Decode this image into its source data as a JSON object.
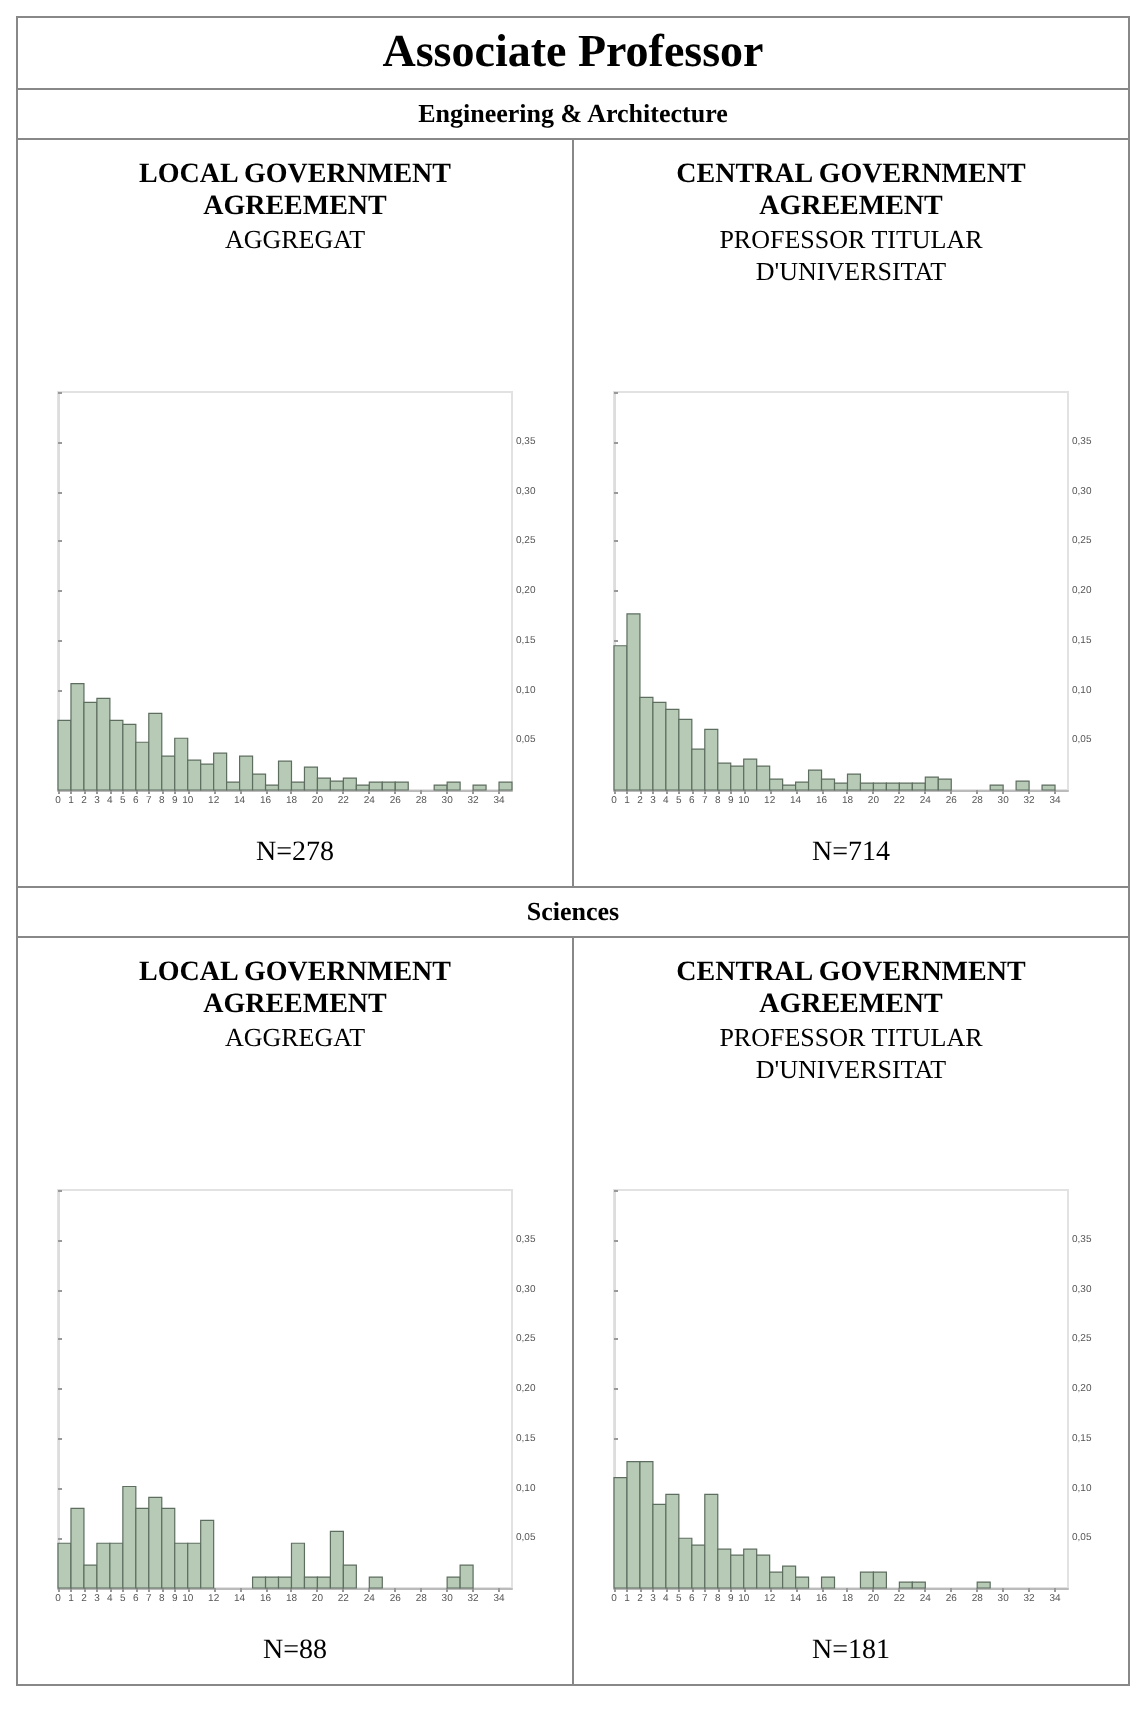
{
  "chart_data": [
    {
      "type": "histogram",
      "title": "LOCAL GOVERNMENT AGREEMENT",
      "subtitle": "AGGREGAT",
      "annotations": [
        "Associate Professor",
        "Engineering & Architecture",
        "N=278"
      ],
      "color": "#b7cab6",
      "bins": [
        0,
        1,
        2,
        3,
        4,
        5,
        6,
        7,
        8,
        9,
        10,
        11,
        12,
        13,
        14,
        15,
        16,
        17,
        18,
        19,
        20,
        21,
        22,
        23,
        24,
        25,
        26,
        27,
        28,
        29,
        30,
        31,
        32,
        33,
        34,
        35
      ],
      "values": [
        0.07,
        0.107,
        0.088,
        0.092,
        0.07,
        0.066,
        0.048,
        0.077,
        0.034,
        0.052,
        0.03,
        0.026,
        0.037,
        0.008,
        0.034,
        0.016,
        0.005,
        0.029,
        0.008,
        0.023,
        0.012,
        0.009,
        0.012,
        0.005,
        0.008,
        0.008,
        0.008,
        0,
        0,
        0.005,
        0.008,
        0,
        0.005,
        0,
        0.008
      ],
      "xlim": [
        0,
        35
      ],
      "xticks": [
        0,
        1,
        2,
        3,
        4,
        5,
        6,
        7,
        8,
        9,
        10,
        12,
        14,
        16,
        18,
        20,
        22,
        24,
        26,
        28,
        30,
        32,
        34
      ],
      "ylim": [
        0,
        0.4
      ],
      "yticks": [
        {
          "value": 0.05,
          "label": "0,05"
        },
        {
          "value": 0.1,
          "label": "0,10"
        },
        {
          "value": 0.15,
          "label": "0,15"
        },
        {
          "value": 0.2,
          "label": "0,20"
        },
        {
          "value": 0.25,
          "label": "0,25"
        },
        {
          "value": 0.3,
          "label": "0,30"
        },
        {
          "value": 0.35,
          "label": "0,35"
        },
        {
          "value": 0.4,
          "label": null
        }
      ]
    },
    {
      "type": "histogram",
      "title": "CENTRAL GOVERNMENT AGREEMENT",
      "subtitle": "PROFESSOR TITULAR D'UNIVERSITAT",
      "annotations": [
        "N=714"
      ],
      "color": "#b7cab6",
      "bins": [
        0,
        1,
        2,
        3,
        4,
        5,
        6,
        7,
        8,
        9,
        10,
        11,
        12,
        13,
        14,
        15,
        16,
        17,
        18,
        19,
        20,
        21,
        22,
        23,
        24,
        25,
        26,
        27,
        28,
        29,
        30,
        31,
        32,
        33,
        34,
        35
      ],
      "values": [
        0.145,
        0.177,
        0.093,
        0.088,
        0.081,
        0.071,
        0.041,
        0.061,
        0.027,
        0.024,
        0.031,
        0.024,
        0.011,
        0.005,
        0.008,
        0.02,
        0.011,
        0.007,
        0.016,
        0.007,
        0.007,
        0.007,
        0.007,
        0.007,
        0.013,
        0.011,
        0,
        0,
        0,
        0.005,
        0,
        0.009,
        0,
        0.005,
        0
      ],
      "xlim": [
        0,
        35
      ],
      "xticks": [
        0,
        1,
        2,
        3,
        4,
        5,
        6,
        7,
        8,
        9,
        10,
        12,
        14,
        16,
        18,
        20,
        22,
        24,
        26,
        28,
        30,
        32,
        34
      ],
      "ylim": [
        0,
        0.4
      ],
      "yticks": [
        {
          "value": 0.05,
          "label": "0,05"
        },
        {
          "value": 0.1,
          "label": "0,10"
        },
        {
          "value": 0.15,
          "label": "0,15"
        },
        {
          "value": 0.2,
          "label": "0,20"
        },
        {
          "value": 0.25,
          "label": "0,25"
        },
        {
          "value": 0.3,
          "label": "0,30"
        },
        {
          "value": 0.35,
          "label": "0,35"
        },
        {
          "value": 0.4,
          "label": null
        }
      ]
    },
    {
      "type": "histogram",
      "title": "LOCAL GOVERNMENT AGREEMENT",
      "subtitle": "AGGREGAT",
      "annotations": [
        "Sciences",
        "N=88"
      ],
      "color": "#b7cab6",
      "bins": [
        0,
        1,
        2,
        3,
        4,
        5,
        6,
        7,
        8,
        9,
        10,
        11,
        12,
        13,
        14,
        15,
        16,
        17,
        18,
        19,
        20,
        21,
        22,
        23,
        24,
        25,
        26,
        27,
        28,
        29,
        30,
        31,
        32,
        33,
        34,
        35
      ],
      "values": [
        0.045,
        0.08,
        0.023,
        0.045,
        0.045,
        0.102,
        0.08,
        0.091,
        0.08,
        0.045,
        0.045,
        0.068,
        0,
        0,
        0,
        0.011,
        0.011,
        0.011,
        0.045,
        0.011,
        0.011,
        0.057,
        0.023,
        0,
        0.011,
        0,
        0,
        0,
        0,
        0,
        0.011,
        0.023,
        0,
        0,
        0
      ],
      "xlim": [
        0,
        35
      ],
      "xticks": [
        0,
        1,
        2,
        3,
        4,
        5,
        6,
        7,
        8,
        9,
        10,
        12,
        14,
        16,
        18,
        20,
        22,
        24,
        26,
        28,
        30,
        32,
        34
      ],
      "ylim": [
        0,
        0.4
      ],
      "yticks": [
        {
          "value": 0.05,
          "label": "0,05"
        },
        {
          "value": 0.1,
          "label": "0,10"
        },
        {
          "value": 0.15,
          "label": "0,15"
        },
        {
          "value": 0.2,
          "label": "0,20"
        },
        {
          "value": 0.25,
          "label": "0,25"
        },
        {
          "value": 0.3,
          "label": "0,30"
        },
        {
          "value": 0.35,
          "label": "0,35"
        },
        {
          "value": 0.4,
          "label": null
        }
      ]
    },
    {
      "type": "histogram",
      "title": "CENTRAL GOVERNMENT AGREEMENT",
      "subtitle": "PROFESSOR TITULAR D'UNIVERSITAT",
      "annotations": [
        "N=181"
      ],
      "color": "#b7cab6",
      "bins": [
        0,
        1,
        2,
        3,
        4,
        5,
        6,
        7,
        8,
        9,
        10,
        11,
        12,
        13,
        14,
        15,
        16,
        17,
        18,
        19,
        20,
        21,
        22,
        23,
        24,
        25,
        26,
        27,
        28,
        29,
        30,
        31,
        32,
        33,
        34,
        35
      ],
      "values": [
        0.111,
        0.127,
        0.127,
        0.084,
        0.094,
        0.05,
        0.043,
        0.094,
        0.039,
        0.033,
        0.039,
        0.033,
        0.016,
        0.022,
        0.011,
        0,
        0.011,
        0,
        0,
        0.016,
        0.016,
        0,
        0.006,
        0.006,
        0,
        0,
        0,
        0,
        0.006,
        0,
        0,
        0,
        0,
        0,
        0
      ],
      "xlim": [
        0,
        35
      ],
      "xticks": [
        0,
        1,
        2,
        3,
        4,
        5,
        6,
        7,
        8,
        9,
        10,
        12,
        14,
        16,
        18,
        20,
        22,
        24,
        26,
        28,
        30,
        32,
        34
      ],
      "ylim": [
        0,
        0.4
      ],
      "yticks": [
        {
          "value": 0.05,
          "label": "0,05"
        },
        {
          "value": 0.1,
          "label": "0,10"
        },
        {
          "value": 0.15,
          "label": "0,15"
        },
        {
          "value": 0.2,
          "label": "0,20"
        },
        {
          "value": 0.25,
          "label": "0,25"
        },
        {
          "value": 0.3,
          "label": "0,30"
        },
        {
          "value": 0.35,
          "label": "0,35"
        },
        {
          "value": 0.4,
          "label": null
        }
      ]
    }
  ]
}
